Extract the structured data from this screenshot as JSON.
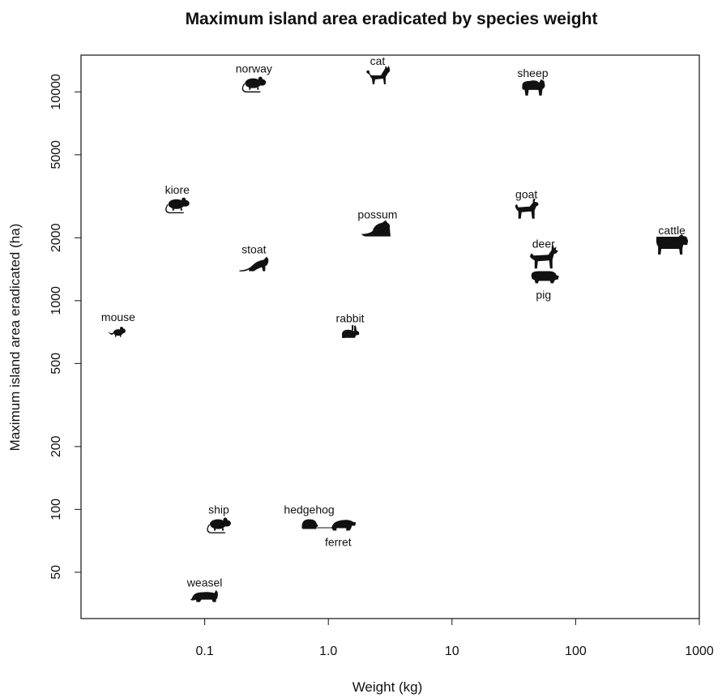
{
  "chart_data": {
    "type": "scatter",
    "title": "Maximum island area eradicated by species weight",
    "xlabel": "Weight (kg)",
    "ylabel": "Maximum island area eradicated (ha)",
    "x_scale": "log",
    "y_scale": "log",
    "xlim": [
      0.01,
      1000
    ],
    "ylim": [
      30,
      15000
    ],
    "x_ticks": [
      0.1,
      1,
      10,
      100,
      1000
    ],
    "x_tick_labels": [
      "0.1",
      "1.0",
      "10",
      "100",
      "1000"
    ],
    "y_ticks": [
      50,
      100,
      200,
      500,
      1000,
      2000,
      5000,
      10000
    ],
    "y_tick_labels": [
      "50",
      "100",
      "200",
      "500",
      "1000",
      "2000",
      "5000",
      "10000"
    ],
    "grid": false,
    "points": [
      {
        "label": "mouse",
        "x": 0.02,
        "y": 710,
        "icon": "mouse-icon",
        "label_pos": "above"
      },
      {
        "label": "kiore",
        "x": 0.06,
        "y": 2900,
        "icon": "rat-icon",
        "label_pos": "above"
      },
      {
        "label": "norway",
        "x": 0.25,
        "y": 11000,
        "icon": "rat-icon",
        "label_pos": "above"
      },
      {
        "label": "stoat",
        "x": 0.25,
        "y": 1500,
        "icon": "stoat-icon",
        "label_pos": "above"
      },
      {
        "label": "ship",
        "x": 0.13,
        "y": 85,
        "icon": "rat-icon",
        "label_pos": "above"
      },
      {
        "label": "weasel",
        "x": 0.1,
        "y": 38,
        "icon": "weasel-icon",
        "label_pos": "above"
      },
      {
        "label": "cat",
        "x": 2.5,
        "y": 12000,
        "icon": "cat-icon",
        "label_pos": "above"
      },
      {
        "label": "possum",
        "x": 2.5,
        "y": 2200,
        "icon": "possum-icon",
        "label_pos": "above"
      },
      {
        "label": "rabbit",
        "x": 1.5,
        "y": 700,
        "icon": "rabbit-icon",
        "label_pos": "above"
      },
      {
        "label": "hedgehog",
        "x": 0.7,
        "y": 85,
        "icon": "hedgehog-icon",
        "label_pos": "above"
      },
      {
        "label": "ferret",
        "x": 1.2,
        "y": 85,
        "icon": "ferret-icon",
        "label_pos": "below"
      },
      {
        "label": "sheep",
        "x": 45,
        "y": 10500,
        "icon": "sheep-icon",
        "label_pos": "above"
      },
      {
        "label": "goat",
        "x": 40,
        "y": 2750,
        "icon": "goat-icon",
        "label_pos": "above"
      },
      {
        "label": "deer",
        "x": 55,
        "y": 1600,
        "icon": "deer-icon",
        "label_pos": "above"
      },
      {
        "label": "pig",
        "x": 55,
        "y": 1300,
        "icon": "pig-icon",
        "label_pos": "below"
      },
      {
        "label": "cattle",
        "x": 600,
        "y": 1850,
        "icon": "cattle-icon",
        "label_pos": "above"
      }
    ]
  }
}
